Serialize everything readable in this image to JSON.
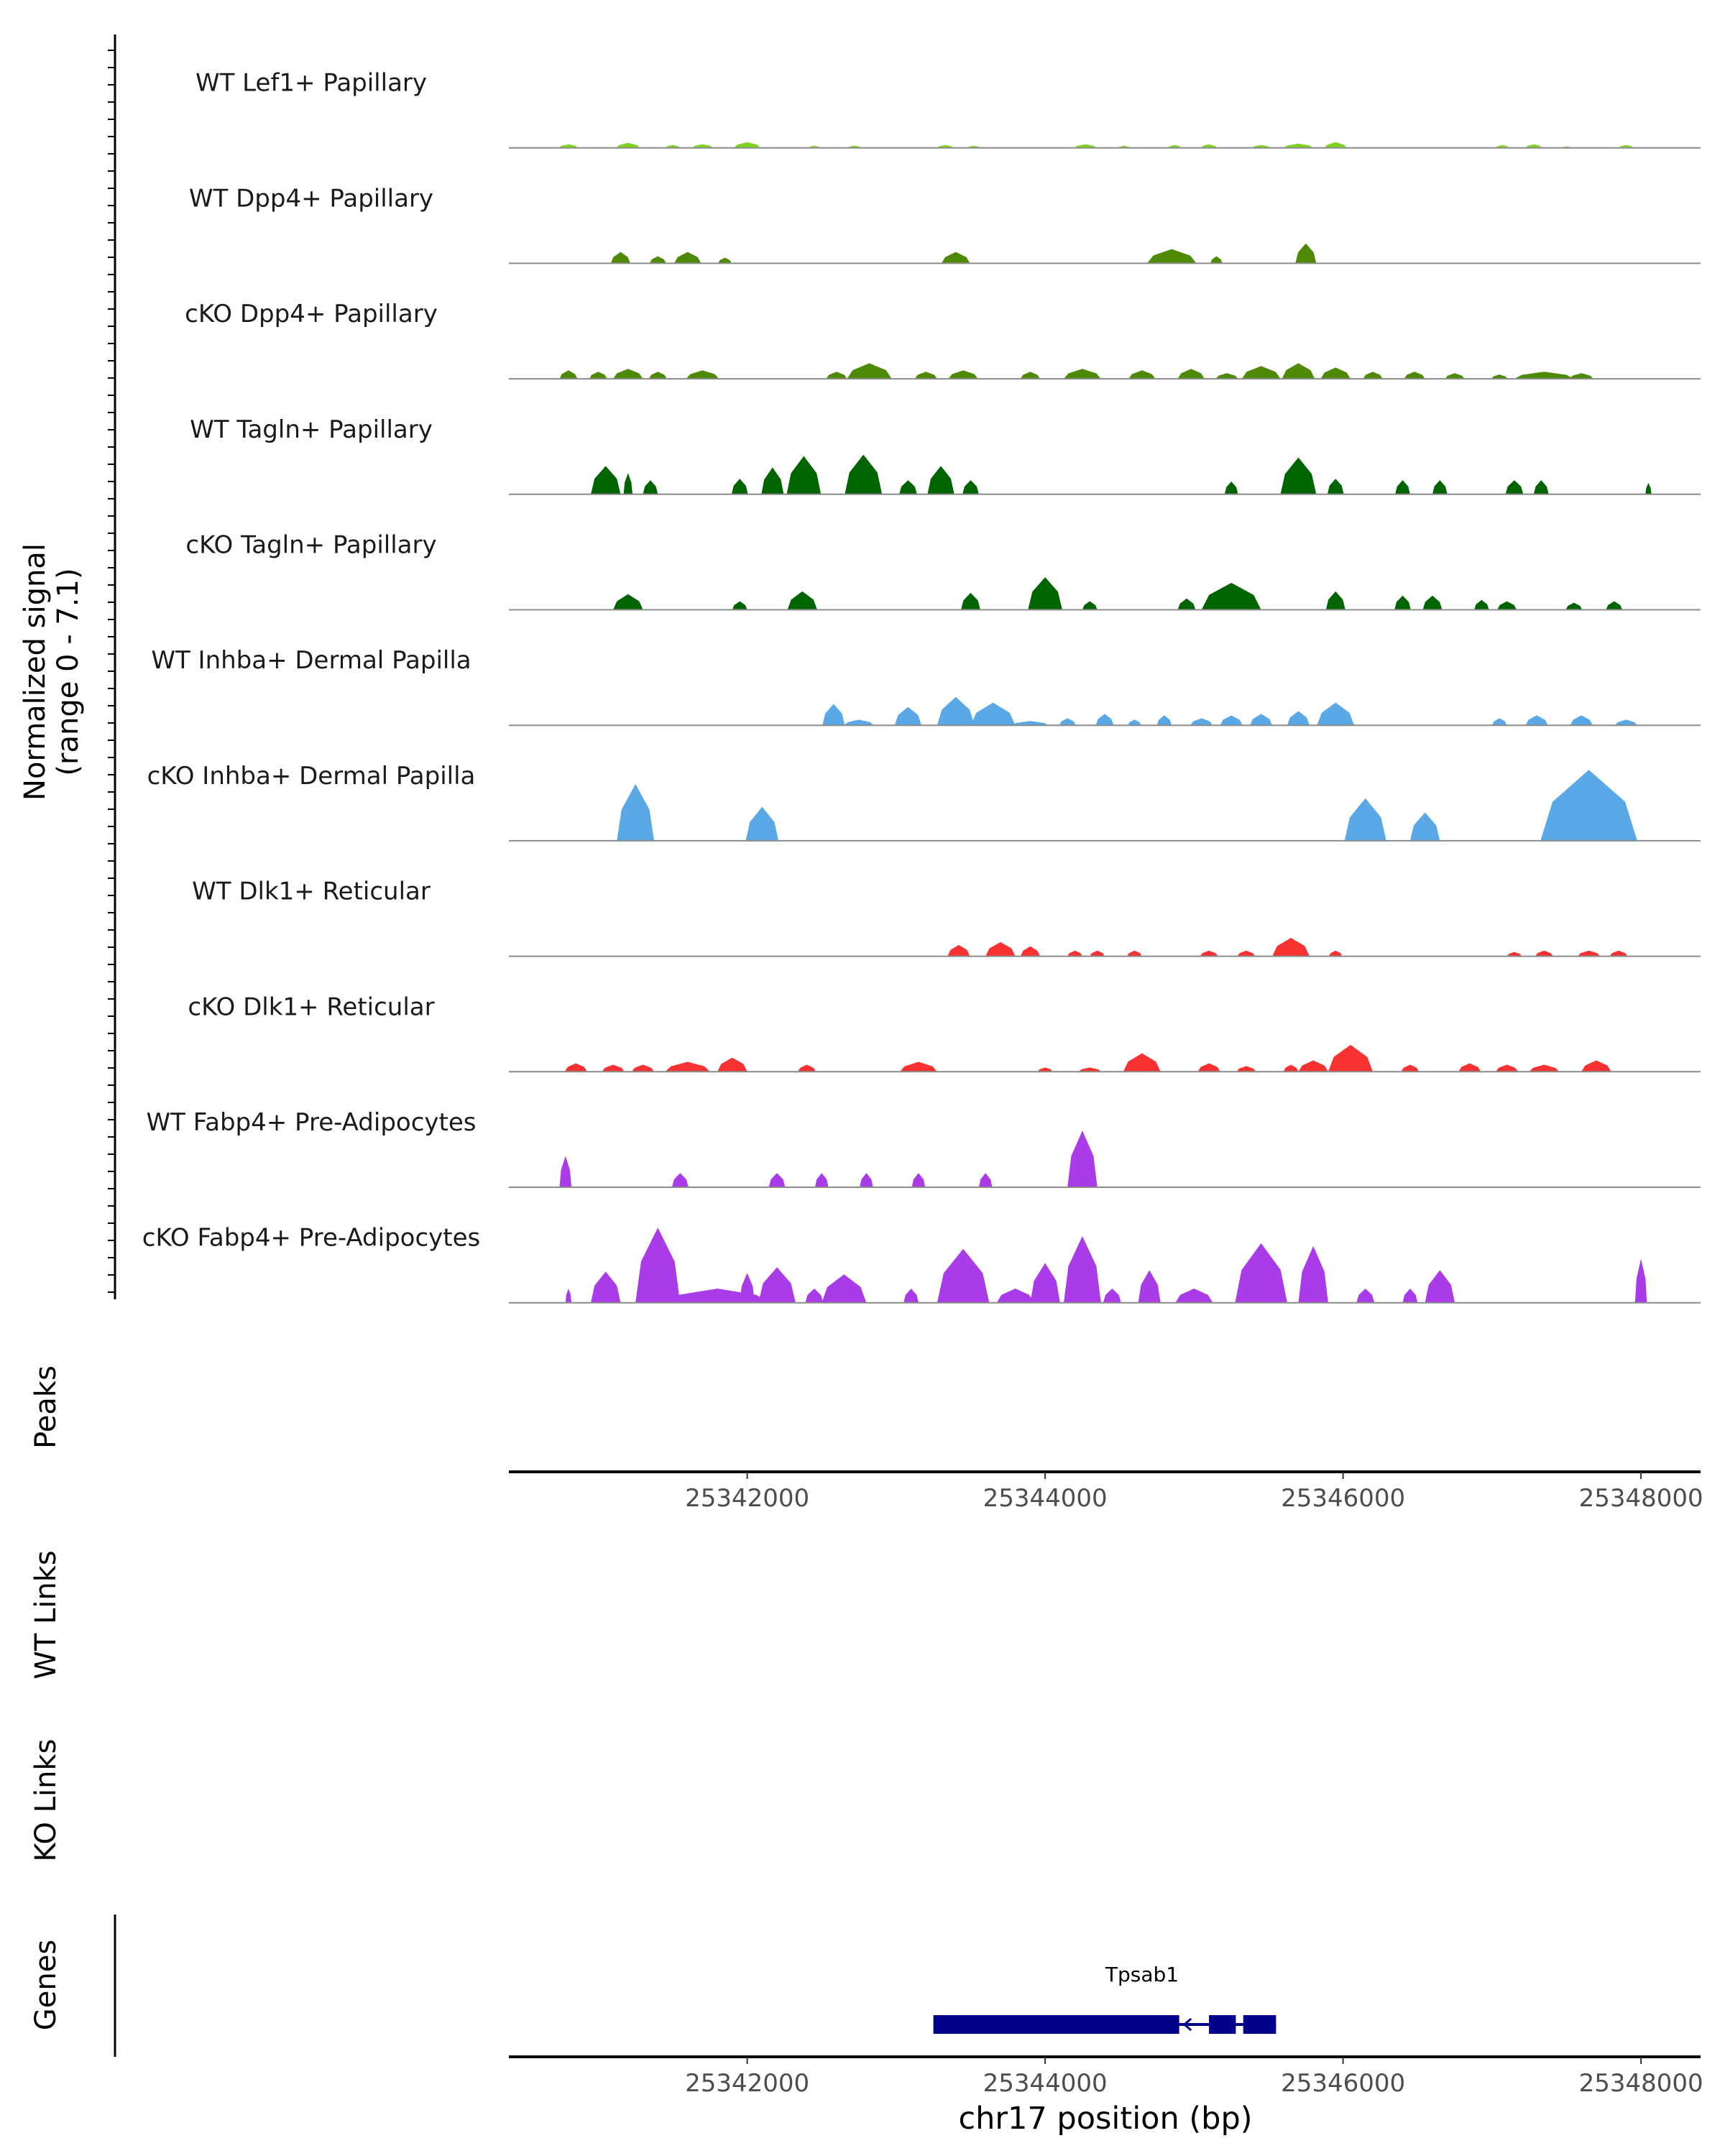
{
  "chart_data": {
    "type": "coverage-track-plot",
    "ylabel_line1": "Normalized signal",
    "ylabel_line2": "(range 0 - 7.1)",
    "y_range": [
      0,
      7.1
    ],
    "x_range": [
      25340400,
      25348400
    ],
    "xlabel": "chr17 position (bp)",
    "x_ticks": [
      25342000,
      25344000,
      25346000,
      25348000
    ],
    "x_tick_labels": [
      "25342000",
      "25344000",
      "25346000",
      "25348000"
    ],
    "tracks": [
      {
        "name": "WT Lef1+ Papillary",
        "color": "#7fd321",
        "peaks": [
          [
            25340800,
            0.25,
            130
          ],
          [
            25341200,
            0.35,
            160
          ],
          [
            25341500,
            0.2,
            100
          ],
          [
            25341700,
            0.25,
            140
          ],
          [
            25342000,
            0.4,
            180
          ],
          [
            25342450,
            0.15,
            80
          ],
          [
            25342720,
            0.15,
            90
          ],
          [
            25343330,
            0.2,
            110
          ],
          [
            25343520,
            0.15,
            90
          ],
          [
            25344270,
            0.25,
            150
          ],
          [
            25344530,
            0.15,
            80
          ],
          [
            25344870,
            0.2,
            90
          ],
          [
            25345100,
            0.25,
            110
          ],
          [
            25345450,
            0.2,
            120
          ],
          [
            25345700,
            0.3,
            200
          ],
          [
            25345950,
            0.4,
            150
          ],
          [
            25347070,
            0.2,
            90
          ],
          [
            25347280,
            0.25,
            110
          ],
          [
            25347500,
            0.1,
            70
          ],
          [
            25347900,
            0.2,
            100
          ]
        ]
      },
      {
        "name": "WT Dpp4+ Papillary",
        "color": "#4e8a06",
        "peaks": [
          [
            25341150,
            0.8,
            130
          ],
          [
            25341400,
            0.5,
            110
          ],
          [
            25341600,
            0.8,
            180
          ],
          [
            25341850,
            0.4,
            90
          ],
          [
            25343400,
            0.8,
            190
          ],
          [
            25344850,
            1.0,
            330
          ],
          [
            25345150,
            0.5,
            80
          ],
          [
            25345750,
            1.4,
            140
          ]
        ]
      },
      {
        "name": "cKO Dpp4+ Papillary",
        "color": "#4e8a06",
        "peaks": [
          [
            25340800,
            0.6,
            120
          ],
          [
            25341000,
            0.5,
            120
          ],
          [
            25341200,
            0.7,
            200
          ],
          [
            25341400,
            0.5,
            120
          ],
          [
            25341700,
            0.6,
            220
          ],
          [
            25342600,
            0.5,
            140
          ],
          [
            25342820,
            1.1,
            300
          ],
          [
            25343200,
            0.5,
            150
          ],
          [
            25343450,
            0.6,
            200
          ],
          [
            25343900,
            0.5,
            130
          ],
          [
            25344250,
            0.7,
            250
          ],
          [
            25344650,
            0.6,
            180
          ],
          [
            25344980,
            0.7,
            180
          ],
          [
            25345220,
            0.4,
            150
          ],
          [
            25345450,
            0.9,
            260
          ],
          [
            25345700,
            1.1,
            220
          ],
          [
            25345950,
            0.8,
            200
          ],
          [
            25346200,
            0.5,
            130
          ],
          [
            25346480,
            0.5,
            140
          ],
          [
            25346750,
            0.4,
            130
          ],
          [
            25347050,
            0.3,
            110
          ],
          [
            25347350,
            0.5,
            400
          ],
          [
            25347600,
            0.4,
            160
          ]
        ]
      },
      {
        "name": "WT Tagln+ Papillary",
        "color": "#006400",
        "peaks": [
          [
            25341050,
            2.0,
            200
          ],
          [
            25341200,
            1.5,
            60
          ],
          [
            25341350,
            1.0,
            100
          ],
          [
            25341950,
            1.1,
            110
          ],
          [
            25342170,
            1.9,
            150
          ],
          [
            25342380,
            2.7,
            230
          ],
          [
            25342780,
            2.8,
            250
          ],
          [
            25343080,
            1.0,
            120
          ],
          [
            25343300,
            2.0,
            180
          ],
          [
            25343500,
            1.0,
            110
          ],
          [
            25345250,
            0.9,
            90
          ],
          [
            25345700,
            2.6,
            240
          ],
          [
            25345950,
            1.1,
            110
          ],
          [
            25346400,
            1.0,
            100
          ],
          [
            25346650,
            1.0,
            100
          ],
          [
            25347150,
            1.0,
            120
          ],
          [
            25347330,
            1.0,
            100
          ],
          [
            25348050,
            0.8,
            40
          ]
        ]
      },
      {
        "name": "cKO Tagln+ Papillary",
        "color": "#006400",
        "peaks": [
          [
            25341200,
            1.1,
            200
          ],
          [
            25341950,
            0.6,
            100
          ],
          [
            25342370,
            1.3,
            200
          ],
          [
            25343500,
            1.2,
            130
          ],
          [
            25344000,
            2.3,
            230
          ],
          [
            25344300,
            0.6,
            100
          ],
          [
            25344950,
            0.8,
            120
          ],
          [
            25345250,
            1.9,
            400
          ],
          [
            25345950,
            1.3,
            130
          ],
          [
            25346400,
            1.0,
            110
          ],
          [
            25346600,
            1.0,
            130
          ],
          [
            25346930,
            0.7,
            100
          ],
          [
            25347100,
            0.6,
            130
          ],
          [
            25347550,
            0.5,
            110
          ],
          [
            25347820,
            0.6,
            110
          ]
        ]
      },
      {
        "name": "WT Inhba+ Dermal Papilla",
        "color": "#5aa9e6",
        "peaks": [
          [
            25342580,
            1.5,
            150
          ],
          [
            25342750,
            0.4,
            200
          ],
          [
            25343080,
            1.3,
            180
          ],
          [
            25343400,
            2.0,
            250
          ],
          [
            25343650,
            1.6,
            300
          ],
          [
            25343900,
            0.3,
            250
          ],
          [
            25344150,
            0.5,
            110
          ],
          [
            25344400,
            0.8,
            120
          ],
          [
            25344600,
            0.4,
            90
          ],
          [
            25344800,
            0.7,
            100
          ],
          [
            25345050,
            0.5,
            150
          ],
          [
            25345250,
            0.7,
            150
          ],
          [
            25345450,
            0.8,
            150
          ],
          [
            25345700,
            1.0,
            150
          ],
          [
            25345950,
            1.6,
            250
          ],
          [
            25347050,
            0.5,
            100
          ],
          [
            25347300,
            0.7,
            150
          ],
          [
            25347600,
            0.7,
            150
          ],
          [
            25347900,
            0.4,
            150
          ]
        ]
      },
      {
        "name": "cKO Inhba+ Dermal Papilla",
        "color": "#5aa9e6",
        "peaks": [
          [
            25341250,
            4.0,
            250
          ],
          [
            25342100,
            2.4,
            220
          ],
          [
            25346150,
            3.0,
            280
          ],
          [
            25346550,
            2.0,
            200
          ],
          [
            25347650,
            5.0,
            650
          ]
        ]
      },
      {
        "name": "WT Dlk1+ Reticular",
        "color": "#f83232",
        "peaks": [
          [
            25343420,
            0.8,
            150
          ],
          [
            25343700,
            1.0,
            200
          ],
          [
            25343900,
            0.7,
            130
          ],
          [
            25344200,
            0.4,
            100
          ],
          [
            25344350,
            0.4,
            100
          ],
          [
            25344600,
            0.4,
            100
          ],
          [
            25345100,
            0.4,
            120
          ],
          [
            25345350,
            0.4,
            120
          ],
          [
            25345650,
            1.3,
            250
          ],
          [
            25345950,
            0.4,
            90
          ],
          [
            25347150,
            0.3,
            100
          ],
          [
            25347350,
            0.4,
            120
          ],
          [
            25347650,
            0.4,
            150
          ],
          [
            25347850,
            0.4,
            120
          ]
        ]
      },
      {
        "name": "cKO Dlk1+ Reticular",
        "color": "#f83232",
        "peaks": [
          [
            25340850,
            0.6,
            150
          ],
          [
            25341100,
            0.5,
            150
          ],
          [
            25341300,
            0.5,
            150
          ],
          [
            25341600,
            0.7,
            300
          ],
          [
            25341900,
            1.0,
            200
          ],
          [
            25342400,
            0.5,
            120
          ],
          [
            25343150,
            0.7,
            250
          ],
          [
            25344000,
            0.3,
            100
          ],
          [
            25344300,
            0.3,
            150
          ],
          [
            25344650,
            1.3,
            250
          ],
          [
            25345100,
            0.6,
            150
          ],
          [
            25345350,
            0.4,
            130
          ],
          [
            25345650,
            0.5,
            100
          ],
          [
            25345800,
            0.8,
            200
          ],
          [
            25346050,
            1.9,
            300
          ],
          [
            25346450,
            0.5,
            120
          ],
          [
            25346850,
            0.6,
            150
          ],
          [
            25347100,
            0.5,
            150
          ],
          [
            25347350,
            0.5,
            200
          ],
          [
            25347700,
            0.8,
            200
          ]
        ]
      },
      {
        "name": "WT Fabp4+ Pre-Adipocytes",
        "color": "#a93be8",
        "peaks": [
          [
            25340780,
            2.2,
            80
          ],
          [
            25341550,
            1.0,
            110
          ],
          [
            25342200,
            1.0,
            110
          ],
          [
            25342500,
            1.0,
            90
          ],
          [
            25342800,
            1.0,
            90
          ],
          [
            25343150,
            1.0,
            90
          ],
          [
            25343600,
            1.0,
            90
          ],
          [
            25344250,
            4.0,
            200
          ]
        ]
      },
      {
        "name": "cKO Fabp4+ Pre-Adipocytes",
        "color": "#a93be8",
        "peaks": [
          [
            25340800,
            1.0,
            40
          ],
          [
            25341050,
            2.2,
            200
          ],
          [
            25341400,
            5.3,
            300
          ],
          [
            25341800,
            1.0,
            700
          ],
          [
            25342000,
            2.1,
            100
          ],
          [
            25342200,
            2.5,
            250
          ],
          [
            25342450,
            1.0,
            120
          ],
          [
            25342650,
            2.0,
            300
          ],
          [
            25343100,
            1.0,
            100
          ],
          [
            25343450,
            3.8,
            350
          ],
          [
            25343800,
            1.0,
            250
          ],
          [
            25344000,
            2.8,
            200
          ],
          [
            25344250,
            4.7,
            250
          ],
          [
            25344450,
            1.0,
            120
          ],
          [
            25344700,
            2.3,
            150
          ],
          [
            25345000,
            1.0,
            250
          ],
          [
            25345450,
            4.2,
            350
          ],
          [
            25345800,
            4.0,
            200
          ],
          [
            25346150,
            1.0,
            120
          ],
          [
            25346450,
            1.0,
            100
          ],
          [
            25346650,
            2.3,
            200
          ],
          [
            25348000,
            3.1,
            80
          ]
        ]
      }
    ],
    "peaks_label": "Peaks",
    "wt_links_label": "WT Links",
    "ko_links_label": "KO Links",
    "genes_label": "Genes",
    "gene": {
      "name": "Tpsab1",
      "start": 25343250,
      "end": 25345550,
      "exons": [
        [
          25343250,
          25344900
        ],
        [
          25345100,
          25345280
        ],
        [
          25345330,
          25345550
        ]
      ],
      "color": "#00008b"
    }
  }
}
